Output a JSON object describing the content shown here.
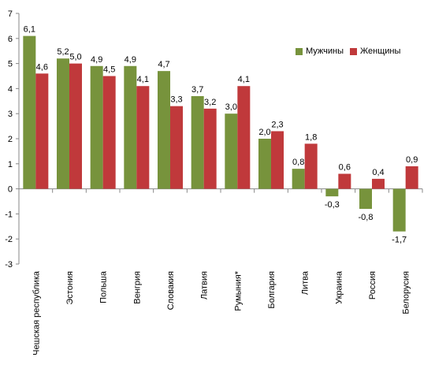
{
  "chart_data": {
    "type": "bar",
    "categories": [
      "Чешская республика",
      "Эстония",
      "Польша",
      "Венгрия",
      "Словакия",
      "Латвия",
      "Румыния*",
      "Болгария",
      "Литва",
      "Украина",
      "Россия",
      "Белорусия"
    ],
    "series": [
      {
        "name": "Мужчины",
        "color": "#77933c",
        "values": [
          6.1,
          5.2,
          4.9,
          4.9,
          4.7,
          3.7,
          3.0,
          2.0,
          0.8,
          -0.3,
          -0.8,
          -1.7
        ],
        "labels": [
          "6,1",
          "5,2",
          "4,9",
          "4,9",
          "4,7",
          "3,7",
          "3,0",
          "2,0",
          "0,8",
          "-0,3",
          "-0,8",
          "-1,7"
        ]
      },
      {
        "name": "Женщины",
        "color": "#c0393b",
        "values": [
          4.6,
          5.0,
          4.5,
          4.1,
          3.3,
          3.2,
          4.1,
          2.3,
          1.8,
          0.6,
          0.4,
          0.9
        ],
        "labels": [
          "4,6",
          "5,0",
          "4,5",
          "4,1",
          "3,3",
          "3,2",
          "4,1",
          "2,3",
          "1,8",
          "0,6",
          "0,4",
          "0,9"
        ]
      }
    ],
    "ylim": [
      -3,
      7
    ],
    "yticks": [
      "-3",
      "-2",
      "-1",
      "0",
      "1",
      "2",
      "3",
      "4",
      "5",
      "6",
      "7"
    ],
    "grid": false,
    "legend_position": "top-right"
  }
}
